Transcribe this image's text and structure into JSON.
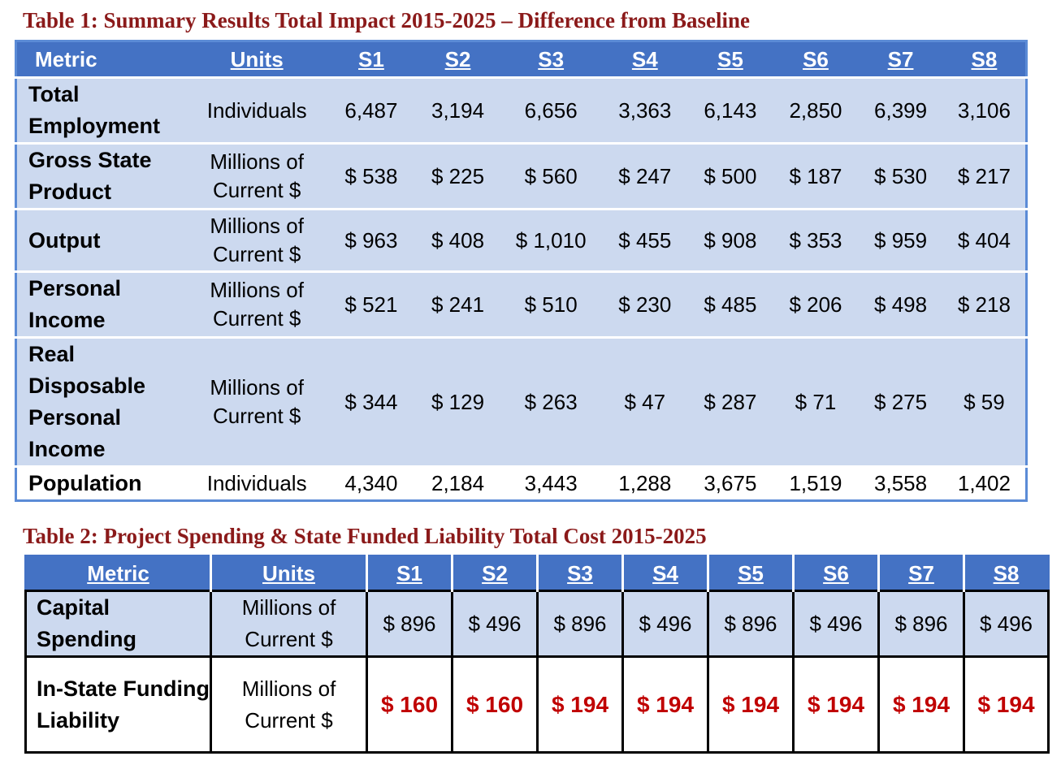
{
  "table1": {
    "caption": "Table 1: Summary Results Total Impact 2015-2025 – Difference from Baseline",
    "headers": [
      "Metric",
      "Units",
      "S1",
      "S2",
      "S3",
      "S4",
      "S5",
      "S6",
      "S7",
      "S8"
    ],
    "rows": [
      {
        "metric": "Total Employment",
        "units": "Individuals",
        "values": [
          "6,487",
          "3,194",
          "6,656",
          "3,363",
          "6,143",
          "2,850",
          "6,399",
          "3,106"
        ]
      },
      {
        "metric": "Gross State Product",
        "units": "Millions of Current $",
        "values": [
          "$ 538",
          "$ 225",
          "$ 560",
          "$ 247",
          "$ 500",
          "$ 187",
          "$ 530",
          "$ 217"
        ]
      },
      {
        "metric": "Output",
        "units": "Millions of Current $",
        "values": [
          "$ 963",
          "$ 408",
          "$ 1,010",
          "$ 455",
          "$ 908",
          "$ 353",
          "$ 959",
          "$ 404"
        ]
      },
      {
        "metric": "Personal Income",
        "units": "Millions of Current $",
        "values": [
          "$ 521",
          "$ 241",
          "$ 510",
          "$ 230",
          "$ 485",
          "$ 206",
          "$ 498",
          "$ 218"
        ]
      },
      {
        "metric": "Real Disposable Personal Income",
        "units": "Millions of Current $",
        "values": [
          "$ 344",
          "$ 129",
          "$ 263",
          "$ 47",
          "$ 287",
          "$ 71",
          "$ 275",
          "$ 59"
        ]
      },
      {
        "metric": "Population",
        "units": "Individuals",
        "values": [
          "4,340",
          "2,184",
          "3,443",
          "1,288",
          "3,675",
          "1,519",
          "3,558",
          "1,402"
        ]
      }
    ]
  },
  "table2": {
    "caption": "Table 2: Project Spending & State Funded Liability Total Cost 2015-2025",
    "headers": [
      "Metric",
      "Units",
      "S1",
      "S2",
      "S3",
      "S4",
      "S5",
      "S6",
      "S7",
      "S8"
    ],
    "rows": [
      {
        "metric": "Capital Spending",
        "units": "Millions of Current $",
        "values": [
          "$ 896",
          "$ 496",
          "$ 896",
          "$ 496",
          "$ 896",
          "$ 496",
          "$ 896",
          "$ 496"
        ]
      },
      {
        "metric": "In-State Funding Liability",
        "units": "Millions of Current $",
        "values": [
          "$ 160",
          "$ 160",
          "$ 194",
          "$ 194",
          "$ 194",
          "$ 194",
          "$ 194",
          "$ 194"
        ]
      }
    ]
  },
  "colors": {
    "caption": "#8b1a1a",
    "header_bg": "#4472c4",
    "row_bg": "#ccd9ef",
    "highlight_value": "#c00000"
  }
}
